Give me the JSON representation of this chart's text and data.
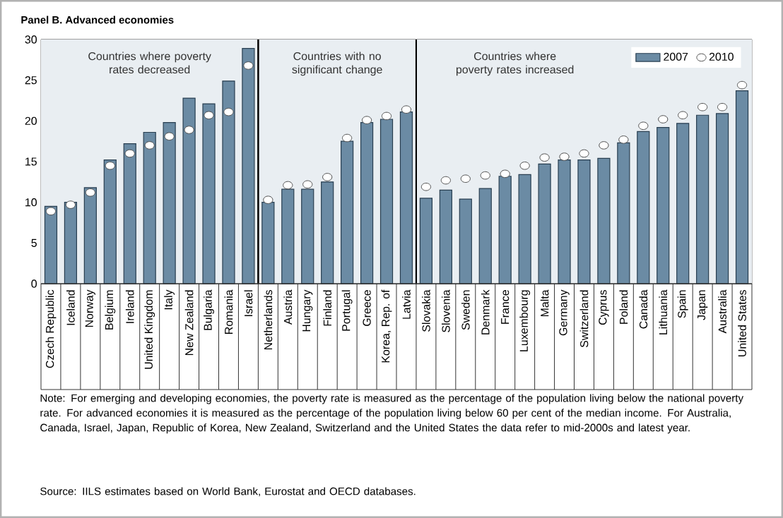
{
  "chart_data": {
    "type": "bar",
    "title": "Panel B. Advanced economies",
    "categories": [
      "Czech Republic",
      "Iceland",
      "Norway",
      "Belgium",
      "Ireland",
      "United Kingdom",
      "Italy",
      "New Zealand",
      "Bulgaria",
      "Romania",
      "Israel",
      "Netherlands",
      "Austria",
      "Hungary",
      "Finland",
      "Portugal",
      "Greece",
      "Korea, Rep. of",
      "Latvia",
      "Slovakia",
      "Slovenia",
      "Sweden",
      "Denmark",
      "France",
      "Luxembourg",
      "Malta",
      "Germany",
      "Switzerland",
      "Cyprus",
      "Poland",
      "Canada",
      "Lithuania",
      "Spain",
      "Japan",
      "Australia",
      "United States"
    ],
    "series": [
      {
        "name": "2007",
        "color": "#6b8ba4",
        "values": [
          9.5,
          10.0,
          11.8,
          15.2,
          17.2,
          18.6,
          19.8,
          22.8,
          22.1,
          24.9,
          28.9,
          10.0,
          11.6,
          11.6,
          12.5,
          17.5,
          19.8,
          20.2,
          21.1,
          10.5,
          11.5,
          10.4,
          11.7,
          13.2,
          13.4,
          14.7,
          15.2,
          15.2,
          15.4,
          17.3,
          18.7,
          19.2,
          19.7,
          20.7,
          20.9,
          23.7
        ]
      },
      {
        "name": "2010",
        "type": "scatter",
        "color": "#ffffff",
        "values": [
          8.9,
          9.7,
          11.2,
          14.5,
          16.0,
          17.0,
          18.1,
          18.9,
          20.7,
          21.1,
          26.8,
          10.3,
          12.1,
          12.2,
          13.1,
          17.9,
          20.1,
          20.6,
          21.4,
          11.9,
          12.7,
          12.9,
          13.3,
          13.5,
          14.5,
          15.5,
          15.6,
          16.0,
          17.0,
          17.7,
          19.4,
          20.2,
          20.7,
          21.7,
          21.7,
          24.4
        ]
      }
    ],
    "marker": "circle",
    "ylim": [
      0,
      30
    ],
    "yticks": [
      0,
      5,
      10,
      15,
      20,
      25,
      30
    ],
    "grid": "y",
    "legend": "top right",
    "bands": [
      {
        "axis": "x",
        "from": "Czech Republic",
        "to": "Israel",
        "label": "Countries where poverty rates decreased",
        "color": "#e9eef2"
      },
      {
        "axis": "x",
        "from": "Netherlands",
        "to": "Latvia",
        "label": "Countries with no significant change",
        "color": "#e9eef2"
      },
      {
        "axis": "x",
        "from": "Slovakia",
        "to": "United States",
        "label": "Countries where poverty rates increased",
        "color": "#e9eef2"
      }
    ],
    "annotations": [
      "Note: For emerging and developing economies, the poverty rate is measured as the percentage of the population living below the national poverty rate. For advanced economies it is measured as the percentage of the population living below 60 per cent of the median income. For Australia, Canada, Israel, Japan, Republic of Korea, New Zealand, Switzerland and the United States the data refer to mid-2000s and latest year.",
      "Source: IILS estimates based on World Bank, Eurostat and OECD databases."
    ]
  }
}
